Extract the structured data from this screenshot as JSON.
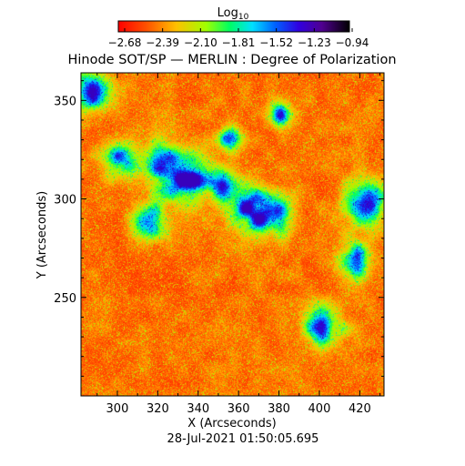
{
  "chart_data": {
    "type": "heatmap",
    "title": "Hinode SOT/SP — MERLIN : Degree of Polarization",
    "xlabel": "X (Arcseconds)",
    "ylabel": "Y (Arcseconds)",
    "timestamp": "28-Jul-2021 01:50:05.695",
    "colorbar": {
      "label_main": "Log",
      "label_sub": "10",
      "ticks": [
        "−2.68",
        "−2.39",
        "−2.10",
        "−1.81",
        "−1.52",
        "−1.23",
        "−0.94"
      ],
      "range": [
        -2.68,
        -0.94
      ],
      "colormap": "rainbow (red → orange → yellow → green → cyan → blue → purple → black)"
    },
    "xlim": [
      282,
      432
    ],
    "ylim": [
      200,
      364
    ],
    "x_ticks": [
      300,
      320,
      340,
      360,
      380,
      400,
      420
    ],
    "y_ticks": [
      250,
      300,
      350
    ],
    "x_tick_labels": [
      "300",
      "320",
      "340",
      "360",
      "380",
      "400",
      "420"
    ],
    "y_tick_labels": [
      "250",
      "300",
      "350"
    ],
    "description_of_features": "",
    "colors": {
      "red": "#ff2000",
      "orange": "#ff8000",
      "yellow": "#ffe000",
      "green": "#40e040",
      "cyan": "#00c8ff",
      "blue": "#0010e0",
      "purple": "#6000a0",
      "black": "#000000"
    }
  }
}
